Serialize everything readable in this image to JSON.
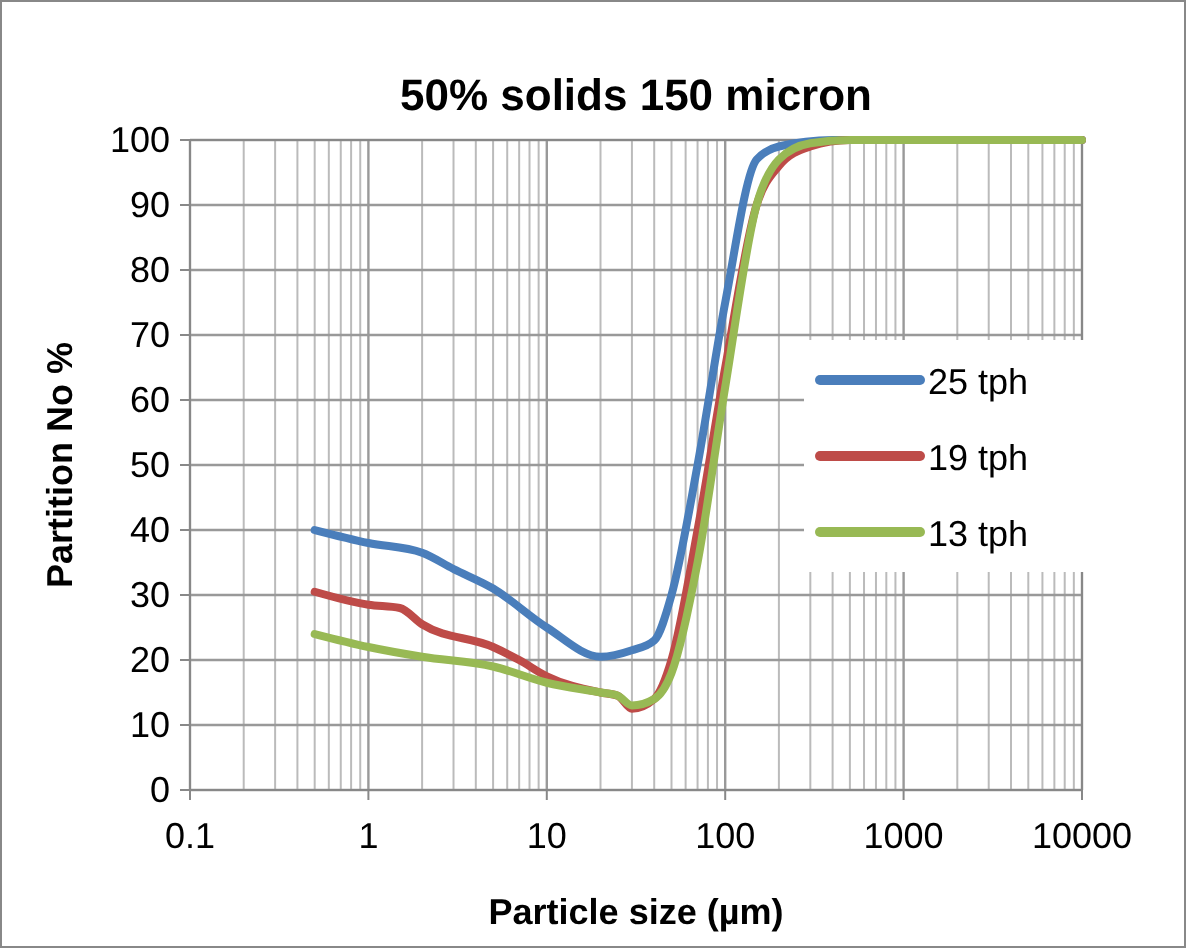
{
  "chart_data": {
    "type": "line",
    "title": "50% solids 150 micron",
    "xlabel": "Particle size (µm)",
    "ylabel": "Partition No %",
    "log": "x",
    "grid": true,
    "legend": "right",
    "line_style": "solid",
    "xlim": [
      0.1,
      10000
    ],
    "xticks": [
      0.1,
      1,
      10,
      100,
      1000,
      10000
    ],
    "ylim": [
      0,
      100
    ],
    "yticks": [
      0,
      10,
      20,
      30,
      40,
      50,
      60,
      70,
      80,
      90,
      100
    ],
    "series": [
      {
        "name": "25 tph",
        "color": "#4a7ebb",
        "x": [
          0.5,
          1,
          2,
          3,
          5,
          10,
          20,
          30,
          40,
          50,
          70,
          100,
          150,
          200,
          400,
          10000
        ],
        "values": [
          40,
          38,
          36.5,
          34,
          31,
          25,
          20.5,
          21.5,
          23,
          30,
          50,
          75,
          97,
          99,
          100,
          100
        ]
      },
      {
        "name": "19 tph",
        "color": "#be4b48",
        "x": [
          0.5,
          1,
          1.5,
          2,
          5,
          7,
          10,
          20,
          25,
          30,
          40,
          50,
          70,
          100,
          150,
          200,
          300,
          500,
          10000
        ],
        "values": [
          30.5,
          28.5,
          28,
          25.5,
          22,
          20,
          17.5,
          15,
          14.5,
          12.5,
          14,
          20,
          40,
          65,
          90,
          96,
          99,
          100,
          100
        ]
      },
      {
        "name": "13 tph",
        "color": "#98b954",
        "x": [
          0.5,
          1,
          2,
          5,
          10,
          20,
          25,
          30,
          40,
          50,
          70,
          100,
          150,
          200,
          300,
          500,
          10000
        ],
        "values": [
          24,
          22,
          20.5,
          19,
          16.5,
          15,
          14.5,
          13,
          14,
          18,
          35,
          62,
          90,
          97,
          99.5,
          100,
          100
        ]
      }
    ]
  }
}
